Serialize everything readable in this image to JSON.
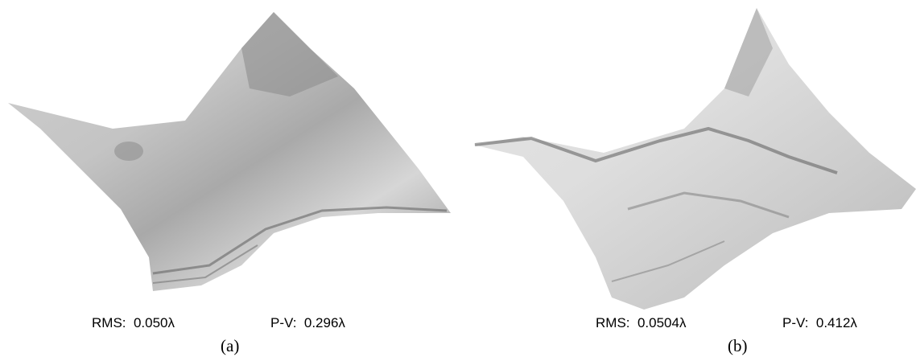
{
  "panels": [
    {
      "rms": "RMS:  0.050λ",
      "pv": "P-V:  0.296λ",
      "label": "(a)"
    },
    {
      "rms": "RMS:  0.0504λ",
      "pv": "P-V:  0.412λ",
      "label": "(b)"
    }
  ]
}
